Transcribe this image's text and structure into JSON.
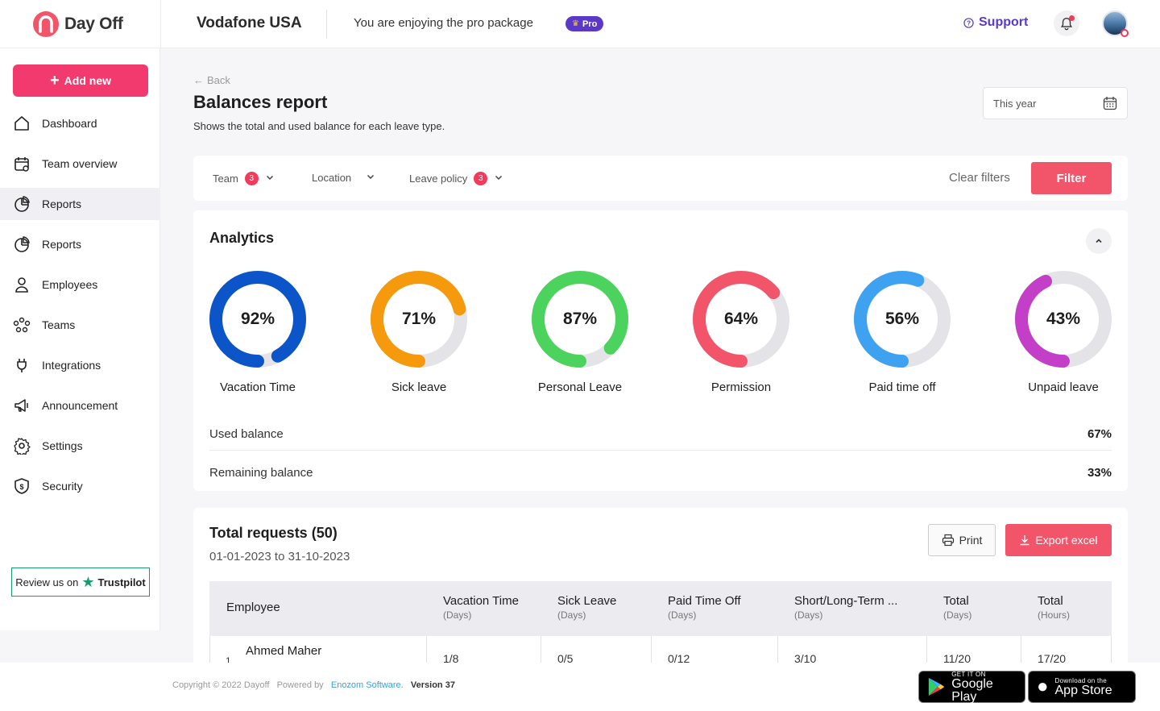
{
  "header": {
    "logo_text": "Day Off",
    "company": "Vodafone USA",
    "package_text": "You are enjoying the pro package",
    "pro_badge": "Pro",
    "support_label": "Support"
  },
  "sidebar": {
    "add_label": "Add new",
    "items": [
      {
        "label": "Dashboard",
        "icon": "home-icon"
      },
      {
        "label": "Team overview",
        "icon": "calendar-icon"
      },
      {
        "label": "Reports",
        "icon": "pie-chart-icon"
      },
      {
        "label": "Reports",
        "icon": "pie-chart-icon"
      },
      {
        "label": "Employees",
        "icon": "user-icon"
      },
      {
        "label": "Teams",
        "icon": "team-icon"
      },
      {
        "label": "Integrations",
        "icon": "plug-icon"
      },
      {
        "label": "Announcement",
        "icon": "megaphone-icon"
      },
      {
        "label": "Settings",
        "icon": "gear-icon"
      },
      {
        "label": "Security",
        "icon": "shield-icon"
      }
    ],
    "trustpilot_text": "Review us on",
    "trustpilot_brand": "Trustpilot"
  },
  "page": {
    "back_label": "Back",
    "title": "Balances report",
    "subtitle": "Shows the total and used balance for each leave type.",
    "date_range": "This year"
  },
  "filters": {
    "team_label": "Team",
    "team_count": "3",
    "location_label": "Location",
    "leave_policy_label": "Leave policy",
    "leave_policy_count": "3",
    "clear_label": "Clear filters",
    "filter_label": "Filter"
  },
  "analytics": {
    "title": "Analytics",
    "donuts": [
      {
        "label": "Vacation Time",
        "value": "92%",
        "pct": 92,
        "color": "#0c55c9"
      },
      {
        "label": "Sick leave",
        "value": "71%",
        "pct": 71,
        "color": "#f59a0c"
      },
      {
        "label": "Personal Leave",
        "value": "87%",
        "pct": 87,
        "color": "#4cd35d"
      },
      {
        "label": "Permission",
        "value": "64%",
        "pct": 64,
        "color": "#f2556a"
      },
      {
        "label": "Paid time off",
        "value": "56%",
        "pct": 56,
        "color": "#3ea2f0"
      },
      {
        "label": "Unpaid leave",
        "value": "43%",
        "pct": 43,
        "color": "#c33fc8"
      }
    ],
    "used_label": "Used balance",
    "used_value": "67%",
    "remaining_label": "Remaining balance",
    "remaining_value": "33%"
  },
  "requests": {
    "title": "Total requests (50)",
    "range": "01-01-2023 to 31-10-2023",
    "print_label": "Print",
    "export_label": "Export excel",
    "columns": [
      {
        "label": "Employee",
        "sub": ""
      },
      {
        "label": "Vacation Time",
        "sub": "(Days)"
      },
      {
        "label": "Sick Leave",
        "sub": "(Days)"
      },
      {
        "label": "Paid Time Off",
        "sub": "(Days)"
      },
      {
        "label": "Short/Long-Term ...",
        "sub": "(Days)"
      },
      {
        "label": "Total",
        "sub": "(Days)"
      },
      {
        "label": "Total",
        "sub": "(Hours)"
      }
    ],
    "rows": [
      {
        "index": "1",
        "employee": "Ahmed Maher",
        "vacation": "1/8",
        "sick": "0/5",
        "paid": "0/12",
        "short_long": "3/10",
        "total_days": "11/20",
        "total_hours": "17/20"
      }
    ]
  },
  "footer": {
    "copyright": "Copyright © 2022 Dayoff",
    "powered": "Powered by",
    "company_link": "Enozom Software.",
    "version_label": "Version",
    "version": "37",
    "google_small": "GET IT ON",
    "google_big": "Google Play",
    "apple_small": "Download on the",
    "apple_big": "App Store"
  }
}
